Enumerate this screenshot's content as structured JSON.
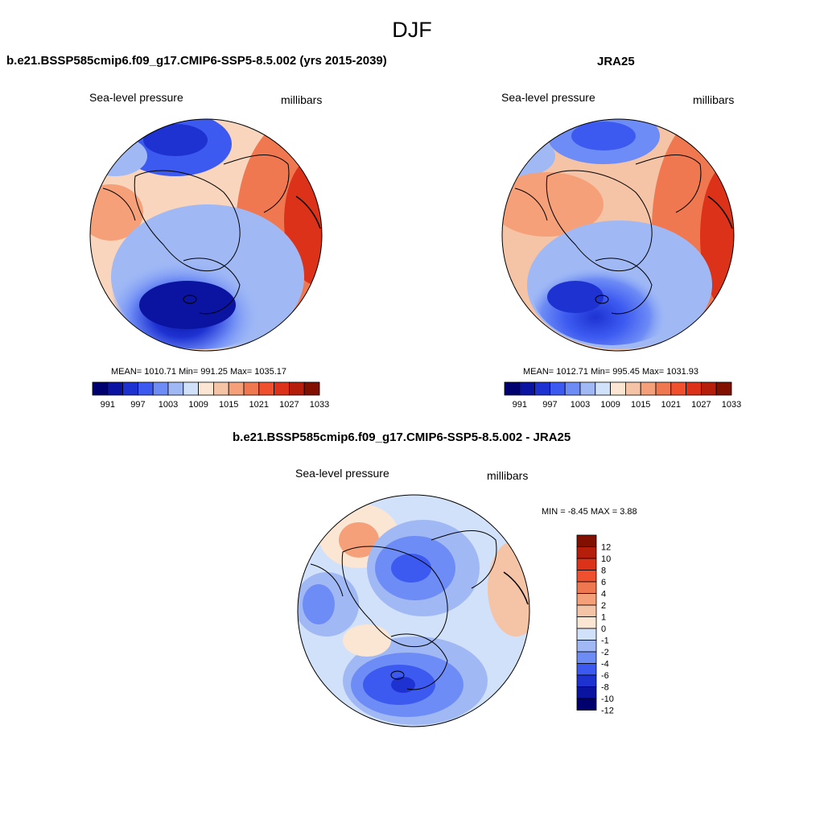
{
  "figure": {
    "title": "DJF"
  },
  "panels": [
    {
      "title": "b.e21.BSSP585cmip6.f09_g17.CMIP6-SSP5-8.5.002 (yrs 2015-2039)",
      "left_label": "Sea-level pressure",
      "right_label": "millibars",
      "stats": "MEAN= 1010.71  Min= 991.25  Max= 1035.17",
      "colorbar_ticks": [
        "991",
        "997",
        "1003",
        "1009",
        "1015",
        "1021",
        "1027",
        "1033"
      ]
    },
    {
      "title": "JRA25",
      "left_label": "Sea-level pressure",
      "right_label": "millibars",
      "stats": "MEAN= 1012.71  Min= 995.45  Max= 1031.93",
      "colorbar_ticks": [
        "991",
        "997",
        "1003",
        "1009",
        "1015",
        "1021",
        "1027",
        "1033"
      ]
    },
    {
      "title": "b.e21.BSSP585cmip6.f09_g17.CMIP6-SSP5-8.5.002 - JRA25",
      "left_label": "Sea-level pressure",
      "right_label": "millibars",
      "stats": "MIN =  -8.45 MAX =   3.88",
      "colorbar_ticks": [
        "12",
        "10",
        "8",
        "6",
        "4",
        "2",
        "1",
        "0",
        "-1",
        "-2",
        "-4",
        "-6",
        "-8",
        "-10",
        "-12"
      ]
    }
  ],
  "colors": {
    "palette": [
      "#00006e",
      "#0a14a0",
      "#1e32d2",
      "#3c5af0",
      "#6e8cf5",
      "#a0b9f5",
      "#d2e1fa",
      "#fae6d2",
      "#f5c3a5",
      "#f5a078",
      "#f07850",
      "#f0502d",
      "#dc3219",
      "#b41e0a",
      "#821000"
    ],
    "low": "#1e32d2",
    "high": "#dc3219",
    "coast": "#000000"
  }
}
